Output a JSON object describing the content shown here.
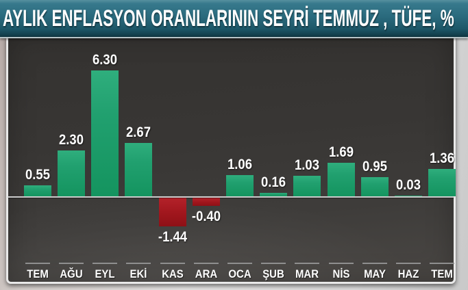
{
  "header": {
    "title": "AYLIK ENFLASYON ORANLARININ SEYRİ TEMMUZ , TÜFE, %"
  },
  "colors": {
    "banner_teal": "#2a6a7d",
    "panel_background": "#3a3836",
    "positive_bar_green": "#1f9e6a",
    "negative_bar_red": "#a2171e",
    "axis_line": "#cccccc",
    "tick_line": "#8f8f8f",
    "label_text": "#ffffff"
  },
  "chart_data": {
    "type": "bar",
    "title": "AYLIK ENFLASYON ORANLARININ SEYRİ TEMMUZ , TÜFE, %",
    "categories": [
      "TEM",
      "AĞU",
      "EYL",
      "EKİ",
      "KAS",
      "ARA",
      "OCA",
      "ŞUB",
      "MAR",
      "NİS",
      "MAY",
      "HAZ",
      "TEM"
    ],
    "values": [
      0.55,
      2.3,
      6.3,
      2.67,
      -1.44,
      -0.4,
      1.06,
      0.16,
      1.03,
      1.69,
      0.95,
      0.03,
      1.36
    ],
    "value_labels": [
      "0.55",
      "2.30",
      "6.30",
      "2.67",
      "-1.44",
      "-0.40",
      "1.06",
      "0.16",
      "1.03",
      "1.69",
      "0.95",
      "0.03",
      "1.36"
    ],
    "xlabel": "",
    "ylabel": "",
    "ylim": [
      -2,
      7
    ],
    "grid": false,
    "legend": false,
    "positive_color": "#1f9e6a",
    "negative_color": "#a2171e"
  }
}
